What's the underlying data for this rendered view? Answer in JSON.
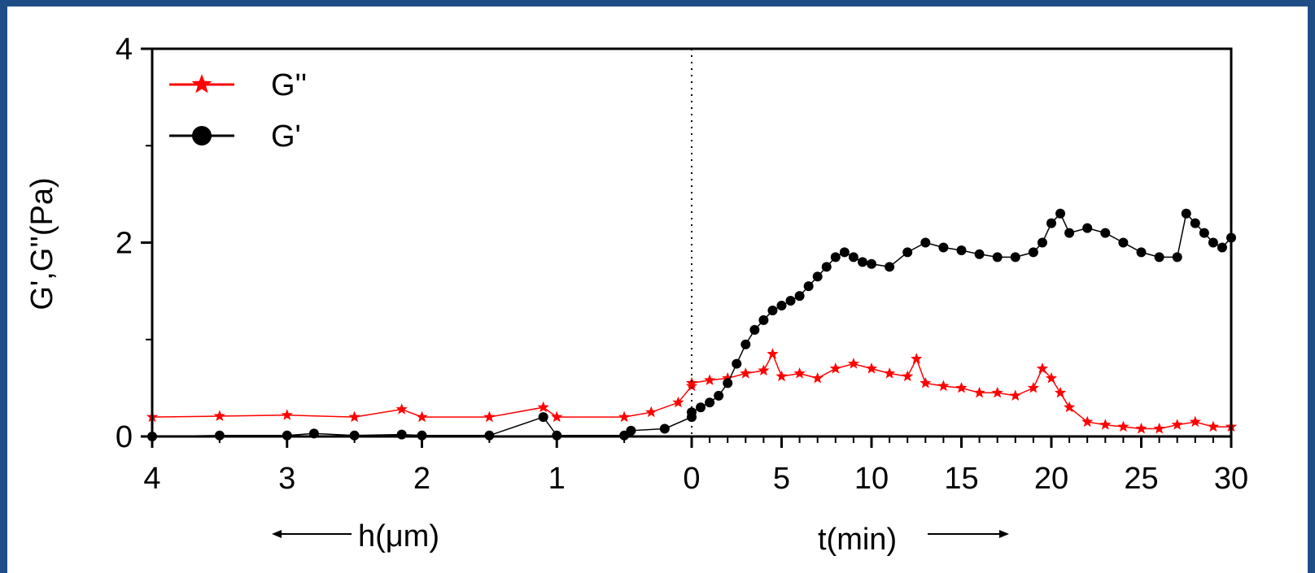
{
  "colors": {
    "frame": "#1f4e86",
    "g_double_prime": "#ff0000",
    "g_prime": "#000000"
  },
  "chart_data": {
    "type": "scatter",
    "title": "",
    "ylabel": "G',G''(Pa)",
    "ylim": [
      0,
      4
    ],
    "y_ticks": [
      0,
      2,
      4
    ],
    "grid": false,
    "legend_position": "top-left",
    "x_segments": [
      {
        "label": "h(μm)",
        "direction": "leftward",
        "range": [
          4,
          0
        ],
        "ticks": [
          "4",
          "3",
          "2",
          "1",
          "0"
        ]
      },
      {
        "label": "t(min)",
        "direction": "rightward",
        "range": [
          0,
          30
        ],
        "ticks": [
          "0",
          "5",
          "10",
          "15",
          "20",
          "25",
          "30"
        ]
      }
    ],
    "series": [
      {
        "name": "G''",
        "marker": "star",
        "color": "#ff0000",
        "h_um": [
          4.0,
          3.5,
          3.0,
          2.5,
          2.15,
          2.0,
          1.5,
          1.1,
          1.0,
          0.5,
          0.3,
          0.1,
          0.0
        ],
        "h_values": [
          0.2,
          0.21,
          0.22,
          0.2,
          0.28,
          0.2,
          0.2,
          0.3,
          0.2,
          0.2,
          0.25,
          0.35,
          0.52
        ],
        "t_min": [
          0,
          1,
          2,
          3,
          4,
          4.5,
          5,
          6,
          7,
          8,
          9,
          10,
          11,
          12,
          12.5,
          13,
          14,
          15,
          16,
          17,
          18,
          19,
          19.5,
          20,
          20.5,
          21,
          22,
          23,
          24,
          25,
          26,
          27,
          28,
          29,
          30
        ],
        "t_values": [
          0.55,
          0.58,
          0.6,
          0.65,
          0.68,
          0.85,
          0.62,
          0.65,
          0.6,
          0.7,
          0.75,
          0.7,
          0.65,
          0.62,
          0.8,
          0.55,
          0.52,
          0.5,
          0.45,
          0.45,
          0.42,
          0.5,
          0.7,
          0.6,
          0.45,
          0.3,
          0.15,
          0.12,
          0.1,
          0.08,
          0.08,
          0.12,
          0.15,
          0.1,
          0.1
        ]
      },
      {
        "name": "G'",
        "marker": "circle",
        "color": "#000000",
        "h_um": [
          4.0,
          3.5,
          3.0,
          2.8,
          2.5,
          2.15,
          2.0,
          1.5,
          1.1,
          1.0,
          0.5,
          0.45,
          0.2,
          0.0
        ],
        "h_values": [
          0.0,
          0.01,
          0.01,
          0.03,
          0.01,
          0.02,
          0.01,
          0.01,
          0.2,
          0.01,
          0.01,
          0.06,
          0.08,
          0.2
        ],
        "t_min": [
          0,
          0.5,
          1,
          1.5,
          2,
          2.5,
          3,
          3.5,
          4,
          4.5,
          5,
          5.5,
          6,
          6.5,
          7,
          7.5,
          8,
          8.5,
          9,
          9.5,
          10,
          11,
          12,
          13,
          14,
          15,
          16,
          17,
          18,
          19,
          19.5,
          20,
          20.5,
          21,
          22,
          23,
          24,
          25,
          26,
          27,
          27.5,
          28,
          28.5,
          29,
          29.5,
          30
        ],
        "t_values": [
          0.25,
          0.3,
          0.35,
          0.42,
          0.55,
          0.75,
          0.95,
          1.1,
          1.2,
          1.3,
          1.35,
          1.4,
          1.45,
          1.55,
          1.65,
          1.75,
          1.85,
          1.9,
          1.85,
          1.8,
          1.78,
          1.75,
          1.9,
          2.0,
          1.95,
          1.92,
          1.88,
          1.85,
          1.85,
          1.9,
          2.0,
          2.2,
          2.3,
          2.1,
          2.15,
          2.1,
          2.0,
          1.9,
          1.85,
          1.85,
          2.3,
          2.2,
          2.1,
          2.0,
          1.95,
          2.05
        ]
      }
    ]
  },
  "labels": {
    "y_axis_title": "G',G''(Pa)",
    "h_axis_title": "h(μm)",
    "t_axis_title": "t(min)",
    "legend_g2": "G''",
    "legend_g1": "G'"
  }
}
